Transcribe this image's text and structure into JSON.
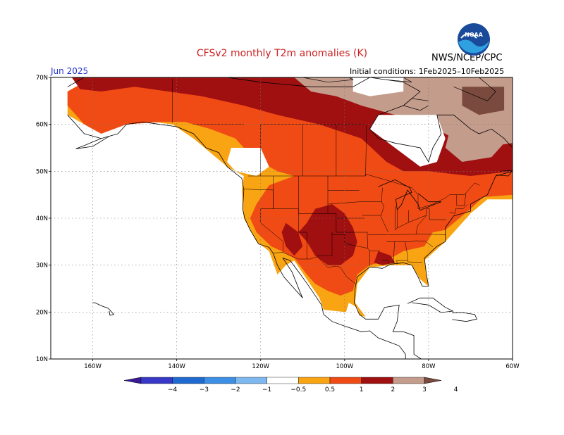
{
  "header": {
    "title": "CFSv2 monthly T2m anomalies (K)",
    "agency": "NWS/NCEP/CPC",
    "month_label": "Jun 2025",
    "initial_conditions": "Initial conditions: 1Feb2025–10Feb2025",
    "logo_text": "NOAA"
  },
  "colors": {
    "title": "#cc2222",
    "month": "#2233cc",
    "ocean": "#ffffff",
    "neutral": "#ffffff",
    "level_0_5_1": "#f9a413",
    "level_1_2": "#f04b14",
    "level_2_3": "#a01010",
    "level_3_4": "#c49c8c",
    "level_4p": "#7a4a3e",
    "neg_0_5_1": "#7db8f0",
    "neg_1_2": "#3d8fe6",
    "neg_2_3": "#1e6ad0",
    "neg_3_4": "#3838c8",
    "neg_4p": "#3a1a9a"
  },
  "map": {
    "lon_range": [
      -170,
      -60
    ],
    "lat_range": [
      10,
      70
    ],
    "lon_ticks": [
      "160W",
      "140W",
      "120W",
      "100W",
      "80W",
      "60W"
    ],
    "lat_ticks": [
      "10N",
      "20N",
      "30N",
      "40N",
      "50N",
      "60N",
      "70N"
    ],
    "lon_tick_values": [
      -160,
      -140,
      -120,
      -100,
      -80,
      -60
    ],
    "lat_tick_values": [
      10,
      20,
      30,
      40,
      50,
      60,
      70
    ],
    "grid": true
  },
  "colorbar": {
    "labels": [
      "−4",
      "−3",
      "−2",
      "−1",
      "−0.5",
      "0.5",
      "1",
      "2",
      "3",
      "4"
    ],
    "bins": [
      "neg_4p",
      "neg_3_4",
      "neg_2_3",
      "neg_1_2",
      "neg_0_5_1",
      "neutral",
      "level_0_5_1",
      "level_1_2",
      "level_2_3",
      "level_3_4",
      "level_4p"
    ]
  }
}
